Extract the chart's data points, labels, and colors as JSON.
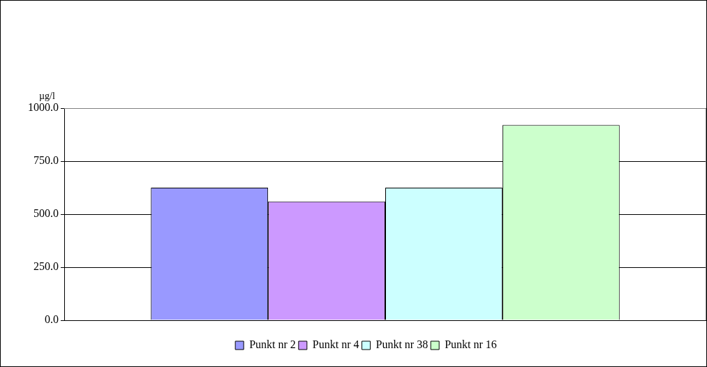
{
  "chart_data": {
    "type": "bar",
    "ylabel": "µg/l",
    "categories": [
      null
    ],
    "series": [
      {
        "name": "Punkt nr 2",
        "color": "#9999ff",
        "values": [
          625
        ]
      },
      {
        "name": "Punkt nr 4",
        "color": "#cc99ff",
        "values": [
          560
        ]
      },
      {
        "name": "Punkt nr 38",
        "color": "#ccffff",
        "values": [
          625
        ]
      },
      {
        "name": "Punkt nr 16",
        "color": "#ccffcc",
        "values": [
          920
        ]
      }
    ],
    "ylim": [
      0,
      1000
    ],
    "yticks": [
      {
        "value": 0,
        "label": "0.0"
      },
      {
        "value": 250,
        "label": "250.0"
      },
      {
        "value": 500,
        "label": "500.0"
      },
      {
        "value": 750,
        "label": "750.0"
      },
      {
        "value": 1000,
        "label": "1000.0"
      }
    ],
    "grid": "y",
    "legend": "bottom"
  }
}
